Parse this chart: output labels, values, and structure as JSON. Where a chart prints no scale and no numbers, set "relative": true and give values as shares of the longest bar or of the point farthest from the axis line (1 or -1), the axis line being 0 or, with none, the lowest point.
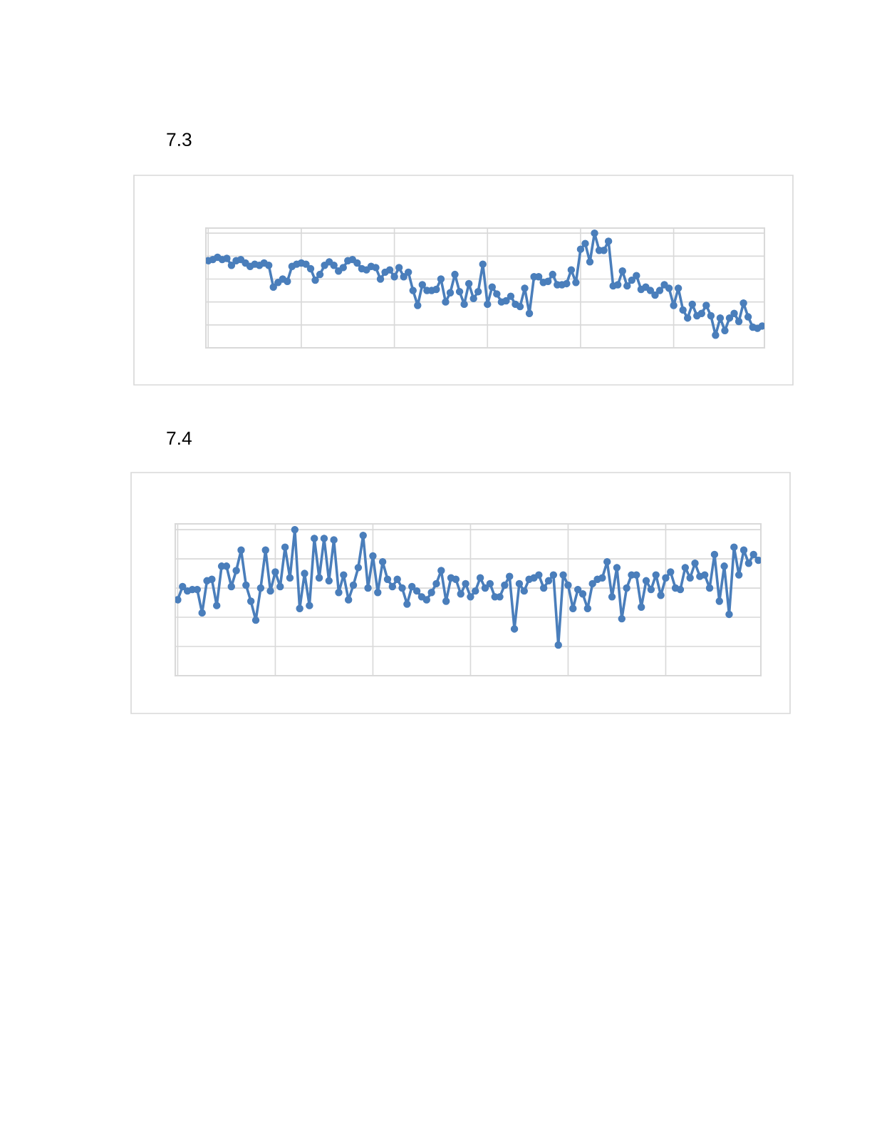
{
  "chart_data": [
    {
      "type": "line",
      "title": "7.3",
      "relative": true,
      "marker": "circle",
      "line_style": "solid",
      "grid": true,
      "tick_labels": false,
      "categories": [
        null,
        null,
        null,
        null,
        null,
        null,
        null,
        null,
        null,
        null,
        null,
        null,
        null,
        null,
        null,
        null,
        null,
        null,
        null,
        null,
        null,
        null,
        null,
        null,
        null,
        null,
        null,
        null,
        null,
        null,
        null,
        null,
        null,
        null,
        null,
        null,
        null,
        null,
        null,
        null,
        null,
        null,
        null,
        null,
        null,
        null,
        null,
        null,
        null,
        null,
        null,
        null,
        null,
        null,
        null,
        null,
        null,
        null,
        null,
        null,
        null,
        null,
        null,
        null,
        null,
        null,
        null,
        null,
        null,
        null,
        null,
        null,
        null,
        null,
        null,
        null,
        null,
        null,
        null,
        null,
        null,
        null,
        null,
        null,
        null,
        null,
        null,
        null,
        null,
        null,
        null,
        null,
        null,
        null,
        null,
        null,
        null,
        null,
        null,
        null,
        null,
        null,
        null,
        null,
        null,
        null,
        null,
        null,
        null,
        null,
        null,
        null,
        null,
        null,
        null,
        null,
        null,
        null,
        null,
        null
      ],
      "series": [
        {
          "color": "#4a7ebb",
          "values": [
            0.76,
            0.77,
            0.79,
            0.77,
            0.78,
            0.72,
            0.76,
            0.77,
            0.74,
            0.71,
            0.73,
            0.72,
            0.74,
            0.72,
            0.53,
            0.57,
            0.6,
            0.58,
            0.71,
            0.73,
            0.74,
            0.73,
            0.69,
            0.59,
            0.64,
            0.72,
            0.75,
            0.72,
            0.67,
            0.7,
            0.76,
            0.77,
            0.74,
            0.69,
            0.68,
            0.71,
            0.7,
            0.6,
            0.66,
            0.68,
            0.62,
            0.7,
            0.62,
            0.66,
            0.5,
            0.37,
            0.55,
            0.5,
            0.5,
            0.51,
            0.6,
            0.4,
            0.48,
            0.64,
            0.49,
            0.38,
            0.56,
            0.43,
            0.49,
            0.73,
            0.38,
            0.53,
            0.47,
            0.4,
            0.41,
            0.45,
            0.38,
            0.36,
            0.52,
            0.3,
            0.62,
            0.62,
            0.57,
            0.58,
            0.64,
            0.55,
            0.55,
            0.56,
            0.68,
            0.57,
            0.86,
            0.91,
            0.75,
            1.0,
            0.85,
            0.85,
            0.93,
            0.54,
            0.55,
            0.67,
            0.54,
            0.59,
            0.63,
            0.51,
            0.53,
            0.5,
            0.46,
            0.5,
            0.55,
            0.52,
            0.37,
            0.52,
            0.33,
            0.26,
            0.38,
            0.28,
            0.3,
            0.37,
            0.28,
            0.11,
            0.26,
            0.15,
            0.26,
            0.3,
            0.23,
            0.39,
            0.27,
            0.18,
            0.17,
            0.19
          ]
        }
      ]
    },
    {
      "type": "line",
      "title": "7.4",
      "relative": true,
      "marker": "circle",
      "line_style": "solid",
      "grid": true,
      "tick_labels": false,
      "categories": [
        null,
        null,
        null,
        null,
        null,
        null,
        null,
        null,
        null,
        null,
        null,
        null,
        null,
        null,
        null,
        null,
        null,
        null,
        null,
        null,
        null,
        null,
        null,
        null,
        null,
        null,
        null,
        null,
        null,
        null,
        null,
        null,
        null,
        null,
        null,
        null,
        null,
        null,
        null,
        null,
        null,
        null,
        null,
        null,
        null,
        null,
        null,
        null,
        null,
        null,
        null,
        null,
        null,
        null,
        null,
        null,
        null,
        null,
        null,
        null,
        null,
        null,
        null,
        null,
        null,
        null,
        null,
        null,
        null,
        null,
        null,
        null,
        null,
        null,
        null,
        null,
        null,
        null,
        null,
        null,
        null,
        null,
        null,
        null,
        null,
        null,
        null,
        null,
        null,
        null,
        null,
        null,
        null,
        null,
        null,
        null,
        null,
        null,
        null,
        null,
        null,
        null,
        null,
        null,
        null,
        null,
        null,
        null,
        null,
        null,
        null,
        null,
        null,
        null,
        null,
        null,
        null,
        null,
        null,
        null
      ],
      "series": [
        {
          "color": "#4a7ebb",
          "values": [
            0.52,
            0.61,
            0.58,
            0.59,
            0.59,
            0.43,
            0.65,
            0.66,
            0.48,
            0.75,
            0.75,
            0.61,
            0.72,
            0.86,
            0.62,
            0.51,
            0.38,
            0.6,
            0.86,
            0.58,
            0.71,
            0.61,
            0.88,
            0.67,
            1.0,
            0.46,
            0.7,
            0.48,
            0.94,
            0.67,
            0.94,
            0.65,
            0.93,
            0.57,
            0.69,
            0.52,
            0.62,
            0.74,
            0.96,
            0.6,
            0.82,
            0.57,
            0.78,
            0.66,
            0.61,
            0.66,
            0.6,
            0.49,
            0.61,
            0.58,
            0.54,
            0.52,
            0.57,
            0.63,
            0.72,
            0.51,
            0.67,
            0.66,
            0.56,
            0.63,
            0.54,
            0.58,
            0.67,
            0.6,
            0.63,
            0.54,
            0.54,
            0.62,
            0.68,
            0.32,
            0.63,
            0.58,
            0.66,
            0.67,
            0.69,
            0.6,
            0.65,
            0.69,
            0.21,
            0.69,
            0.62,
            0.46,
            0.59,
            0.56,
            0.46,
            0.63,
            0.66,
            0.67,
            0.78,
            0.54,
            0.74,
            0.39,
            0.6,
            0.69,
            0.69,
            0.47,
            0.65,
            0.59,
            0.69,
            0.55,
            0.67,
            0.71,
            0.6,
            0.59,
            0.74,
            0.67,
            0.77,
            0.68,
            0.69,
            0.6,
            0.83,
            0.51,
            0.75,
            0.42,
            0.88,
            0.69,
            0.86,
            0.77,
            0.83,
            0.79
          ]
        }
      ]
    }
  ]
}
